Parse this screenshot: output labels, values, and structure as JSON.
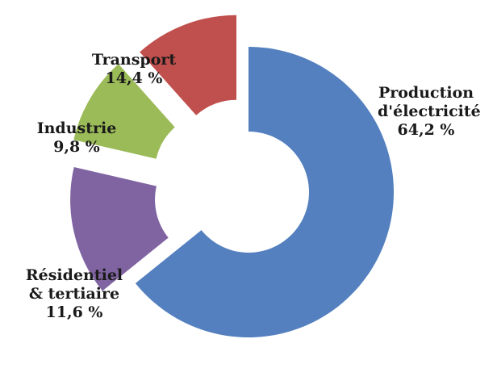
{
  "chart_data": {
    "type": "pie",
    "variant": "donut-exploded",
    "categories": [
      "Production d'électricité",
      "Transport",
      "Industrie",
      "Résidentiel & tertiaire"
    ],
    "values": [
      64.2,
      14.4,
      9.8,
      11.6
    ],
    "unit": "%",
    "colors": [
      "#5480bf",
      "#8064a2",
      "#9bbb59",
      "#c0504d"
    ],
    "legend": "none",
    "slices": [
      {
        "label_lines": [
          "Production",
          "d'électricité"
        ],
        "value_text": "64,2 %"
      },
      {
        "label_lines": [
          "Transport"
        ],
        "value_text": "14,4 %"
      },
      {
        "label_lines": [
          "Industrie"
        ],
        "value_text": "9,8 %"
      },
      {
        "label_lines": [
          "Résidentiel",
          "& tertiaire"
        ],
        "value_text": "11,6 %"
      }
    ]
  }
}
